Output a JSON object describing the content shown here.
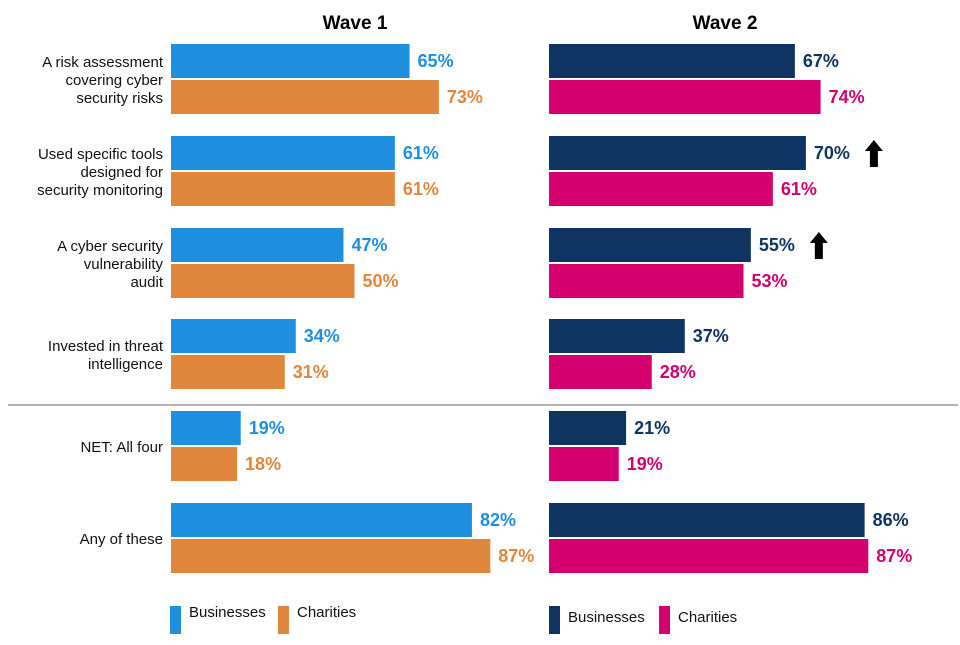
{
  "chart_data": {
    "type": "bar",
    "orientation": "horizontal",
    "xlim": [
      0,
      100
    ],
    "value_suffix": "%",
    "categories": [
      [
        "A risk assessment",
        "covering cyber",
        "security risks"
      ],
      [
        "Used specific tools",
        "designed for",
        "security monitoring"
      ],
      [
        "A cyber security",
        "vulnerability",
        "audit"
      ],
      [
        "Invested in threat",
        "intelligence"
      ],
      [
        "NET: All four"
      ],
      [
        "Any of these"
      ]
    ],
    "panels": [
      {
        "title": "Wave 1",
        "series": [
          {
            "name": "Businesses",
            "color": "#1f8fe0",
            "label_color": "#1f8fe0",
            "values": [
              65,
              61,
              47,
              34,
              19,
              82
            ]
          },
          {
            "name": "Charities",
            "color": "#e0873d",
            "label_color": "#e0873d",
            "values": [
              73,
              61,
              50,
              31,
              18,
              87
            ]
          }
        ],
        "significant_increase": [
          false,
          false,
          false,
          false,
          false,
          false
        ]
      },
      {
        "title": "Wave 2",
        "series": [
          {
            "name": "Businesses",
            "color": "#0f3461",
            "label_color": "#0f3461",
            "values": [
              67,
              70,
              55,
              37,
              21,
              86
            ]
          },
          {
            "name": "Charities",
            "color": "#d4006e",
            "label_color": "#d4006e",
            "values": [
              74,
              61,
              53,
              28,
              19,
              87
            ]
          }
        ],
        "significant_increase": [
          false,
          true,
          true,
          false,
          false,
          false
        ]
      }
    ],
    "legend": [
      "Businesses",
      "Charities"
    ],
    "divider_after_category": 4
  }
}
